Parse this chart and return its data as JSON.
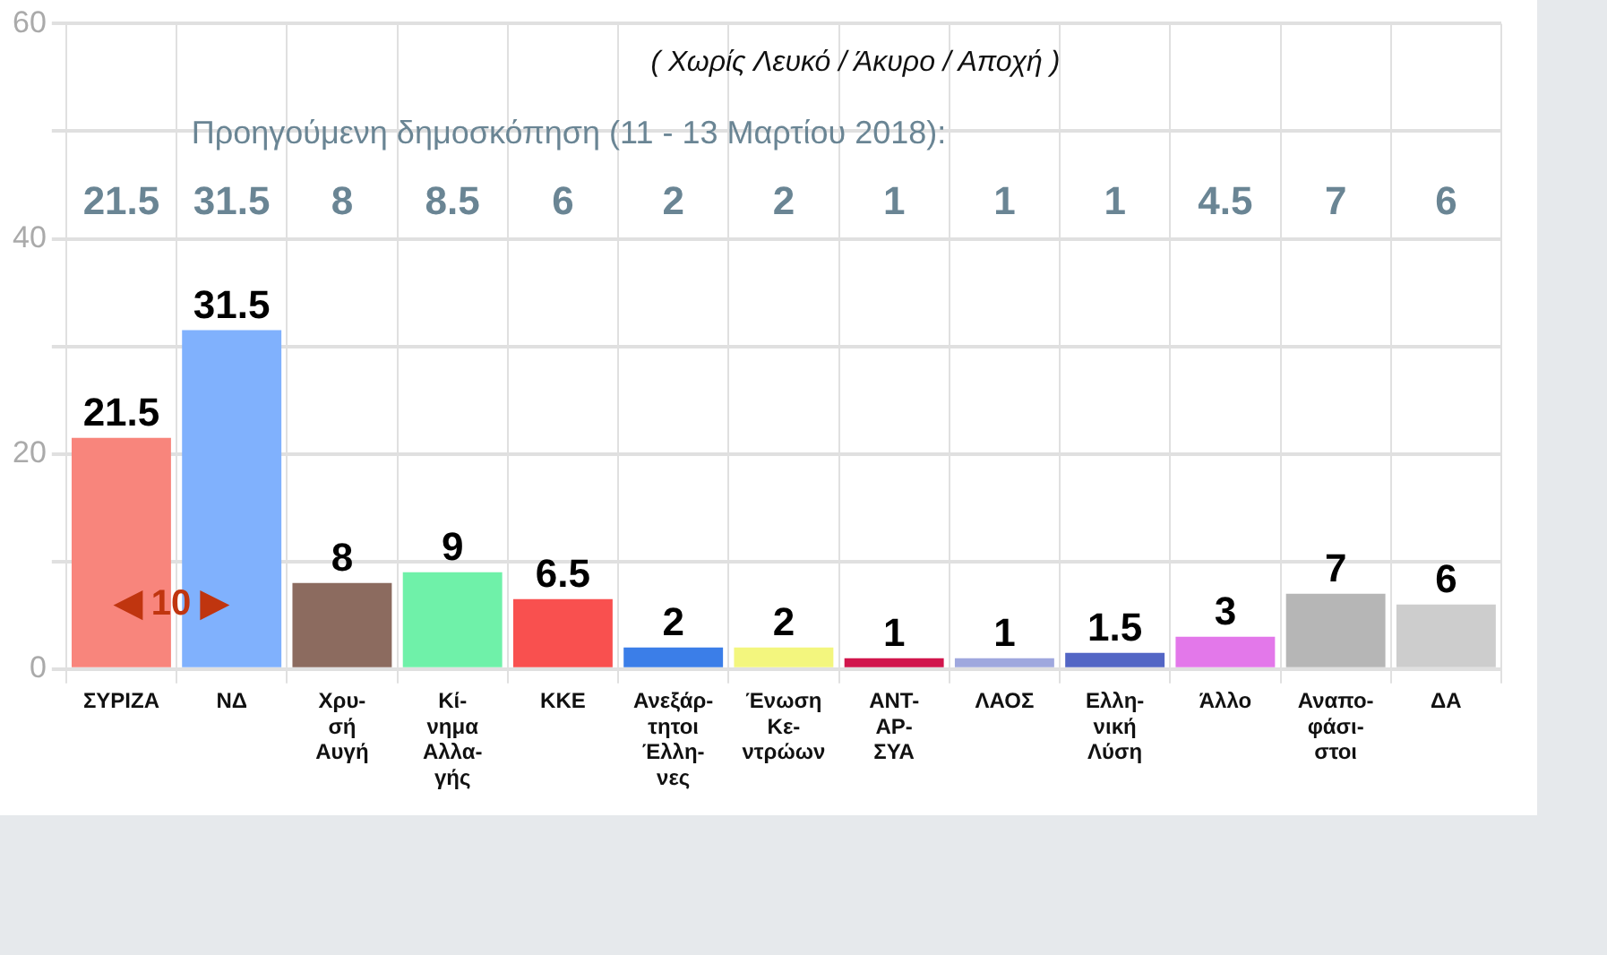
{
  "chart_data": {
    "type": "bar",
    "subtitle": "( Χωρίς Λευκό / Άκυρο / Αποχή )",
    "categories": [
      "ΣΥΡΙΖΑ",
      "ΝΔ",
      "Χρυ-\nσή\nΑυγή",
      "Κί-\nνημα\nΑλλα-\nγής",
      "ΚΚΕ",
      "Ανεξάρ-\nτητοι\nΈλλη-\nνες",
      "Ένωση\nΚε-\nντρώων",
      "ΑΝΤ-\nΑΡ-\nΣΥΑ",
      "ΛΑΟΣ",
      "Ελλη-\nνική\nΛύση",
      "Άλλο",
      "Αναπο-\nφάσι-\nστοι",
      "ΔΑ"
    ],
    "values": [
      21.5,
      31.5,
      8,
      9,
      6.5,
      2,
      2,
      1,
      1,
      1.5,
      3,
      7,
      6
    ],
    "colors": [
      "#f8857c",
      "#80b1fd",
      "#8c6b5f",
      "#6ff1a9",
      "#f9504f",
      "#3b7ee8",
      "#f3f67e",
      "#d1154c",
      "#9fa8de",
      "#5366c5",
      "#e378ea",
      "#b6b6b6",
      "#cdcdcd"
    ],
    "ylim": [
      0,
      60
    ],
    "yticks": [
      0,
      {
        "value": 10,
        "label": null
      },
      20,
      {
        "value": 30,
        "label": null
      },
      40,
      {
        "value": 50,
        "label": null
      },
      60
    ],
    "grid": true,
    "data_labels": true,
    "annotations": [
      "Προηγούμενη δημοσκόπηση (11 - 13 Μαρτίου 2018):",
      "◀ 10 ▶",
      "21.5",
      "31.5",
      "8",
      "8.5",
      "6",
      "2",
      "2",
      "1",
      "1",
      "1",
      "4.5",
      "7",
      "6"
    ]
  }
}
